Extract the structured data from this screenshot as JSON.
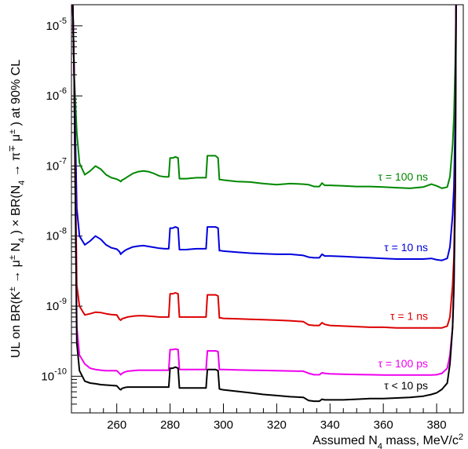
{
  "chart_data": {
    "type": "line",
    "title": "",
    "xlabel": "Assumed N4 mass, MeV/c²",
    "ylabel": "UL on BR(K± → μ±N4) × BR(N4 → π∓μ±) at 90% CL",
    "x_scale": "linear",
    "y_scale": "log",
    "xlim": [
      243,
      390
    ],
    "ylim": [
      3e-11,
      2e-05
    ],
    "x_ticks": [
      260,
      280,
      300,
      320,
      340,
      360,
      380
    ],
    "y_ticks": [
      1e-10,
      1e-09,
      1e-08,
      1e-07,
      1e-06,
      1e-05
    ],
    "grid": false,
    "x_breaks": [
      243.5,
      244,
      245,
      246,
      248,
      250,
      252,
      254,
      256,
      258,
      260,
      261,
      261.5,
      262,
      263,
      264,
      266,
      268,
      270,
      272,
      274,
      276,
      278,
      279.5,
      280,
      281,
      282,
      283,
      283.5,
      284,
      286,
      288,
      290,
      292,
      293.5,
      294,
      296,
      297,
      298,
      298.5,
      299,
      300,
      305,
      310,
      315,
      320,
      325,
      330,
      332,
      334,
      336,
      337,
      338,
      340,
      345,
      350,
      355,
      360,
      365,
      370,
      375,
      378,
      380,
      382,
      384,
      385,
      386,
      386.5,
      387,
      387.3
    ],
    "series": [
      {
        "name": "τ = 100 ns",
        "color": "#008800",
        "values": [
          2e-05,
          2e-06,
          3e-07,
          1.1e-07,
          7.5e-08,
          8.5e-08,
          1e-07,
          9e-08,
          7.5e-08,
          6.8e-08,
          6.5e-08,
          6.2e-08,
          6e-08,
          6.3e-08,
          6.6e-08,
          7e-08,
          7.8e-08,
          8.3e-08,
          8.5e-08,
          8.3e-08,
          7.8e-08,
          7.2e-08,
          7e-08,
          7e-08,
          1.3e-07,
          1.3e-07,
          1.35e-07,
          1.3e-07,
          6.6e-08,
          6.6e-08,
          6.6e-08,
          6.7e-08,
          6.8e-08,
          6.8e-08,
          6.8e-08,
          1.4e-07,
          1.4e-07,
          1.4e-07,
          1.3e-07,
          6.4e-08,
          6.4e-08,
          6.3e-08,
          6e-08,
          5.9e-08,
          5.6e-08,
          5.4e-08,
          5.6e-08,
          5.5e-08,
          5.4e-08,
          5.1e-08,
          5.1e-08,
          5.7e-08,
          5.3e-08,
          5.3e-08,
          5.2e-08,
          5.1e-08,
          5.1e-08,
          5e-08,
          4.9e-08,
          4.8e-08,
          5e-08,
          5.5e-08,
          5.2e-08,
          4.8e-08,
          5e-08,
          7e-08,
          2e-07,
          5e-07,
          3e-06,
          2e-05
        ]
      },
      {
        "name": "τ = 10 ns",
        "color": "#0000dd",
        "values": [
          2e-05,
          2e-06,
          2.5e-08,
          1e-08,
          7.5e-09,
          8.5e-09,
          1e-08,
          9e-09,
          7.5e-09,
          6.8e-09,
          6.5e-09,
          6e-09,
          5.5e-09,
          5.8e-09,
          6.2e-09,
          6.5e-09,
          7e-09,
          7.2e-09,
          7.3e-09,
          7.1e-09,
          6.9e-09,
          6.7e-09,
          6.6e-09,
          6.6e-09,
          1.3e-08,
          1.3e-08,
          1.35e-08,
          1.3e-08,
          6.4e-09,
          6.4e-09,
          6.4e-09,
          6.5e-09,
          6.6e-09,
          6.6e-09,
          6.6e-09,
          1.35e-08,
          1.35e-08,
          1.35e-08,
          1.3e-08,
          6.2e-09,
          6.2e-09,
          6.1e-09,
          5.9e-09,
          5.7e-09,
          5.6e-09,
          5.5e-09,
          5.5e-09,
          5.3e-09,
          5e-09,
          4.9e-09,
          4.9e-09,
          5.5e-09,
          5.2e-09,
          5.2e-09,
          5.1e-09,
          5e-09,
          4.9e-09,
          4.8e-09,
          4.7e-09,
          4.7e-09,
          4.7e-09,
          4.8e-09,
          4.6e-09,
          4.5e-09,
          4.8e-09,
          7e-09,
          2e-08,
          5e-08,
          5e-07,
          2e-05
        ]
      },
      {
        "name": "τ = 1 ns",
        "color": "#dd0000",
        "values": [
          2e-05,
          2e-06,
          2e-09,
          1e-09,
          7.5e-10,
          7.8e-10,
          8.2e-10,
          8.1e-10,
          7.8e-10,
          7.6e-10,
          7.5e-10,
          6.5e-10,
          6.3e-10,
          6.6e-10,
          6.8e-10,
          7e-10,
          7.2e-10,
          7.3e-10,
          7.3e-10,
          7.2e-10,
          7.1e-10,
          7e-10,
          7e-10,
          7e-10,
          1.5e-09,
          1.5e-09,
          1.55e-09,
          1.5e-09,
          7e-10,
          7e-10,
          7e-10,
          7e-10,
          7e-10,
          7e-10,
          7e-10,
          1.45e-09,
          1.45e-09,
          1.45e-09,
          1.4e-09,
          6.8e-10,
          6.8e-10,
          6.7e-10,
          6.6e-10,
          6.5e-10,
          6.4e-10,
          6.3e-10,
          6.2e-10,
          6e-10,
          5.4e-10,
          5.3e-10,
          5.3e-10,
          5.8e-10,
          5.5e-10,
          5.3e-10,
          5.2e-10,
          5.1e-10,
          5e-10,
          5e-10,
          4.9e-10,
          4.9e-10,
          4.9e-10,
          4.9e-10,
          4.9e-10,
          4.9e-10,
          5.2e-10,
          7e-10,
          2e-09,
          5e-09,
          1e-07,
          2e-05
        ]
      },
      {
        "name": "τ = 100 ps",
        "color": "#ee00ee",
        "values": [
          2e-05,
          2e-06,
          5e-10,
          2e-10,
          1.5e-10,
          1.3e-10,
          1.25e-10,
          1.22e-10,
          1.2e-10,
          1.2e-10,
          1.2e-10,
          1.1e-10,
          1.05e-10,
          1.1e-10,
          1.15e-10,
          1.18e-10,
          1.2e-10,
          1.22e-10,
          1.22e-10,
          1.22e-10,
          1.22e-10,
          1.22e-10,
          1.22e-10,
          1.22e-10,
          2.4e-10,
          2.4e-10,
          2.45e-10,
          2.4e-10,
          1.25e-10,
          1.25e-10,
          1.25e-10,
          1.25e-10,
          1.25e-10,
          1.25e-10,
          1.25e-10,
          2.3e-10,
          2.3e-10,
          2.3e-10,
          2.25e-10,
          1.25e-10,
          1.25e-10,
          1.25e-10,
          1.23e-10,
          1.22e-10,
          1.21e-10,
          1.2e-10,
          1.19e-10,
          1.18e-10,
          1.1e-10,
          1.05e-10,
          1.05e-10,
          1.12e-10,
          1.1e-10,
          1.08e-10,
          1.07e-10,
          1.06e-10,
          1.05e-10,
          1.04e-10,
          1.04e-10,
          1.04e-10,
          1.04e-10,
          1.04e-10,
          1.05e-10,
          1.1e-10,
          1.3e-10,
          2e-10,
          5e-10,
          2e-09,
          5e-08,
          2e-05
        ]
      },
      {
        "name": "τ < 10 ps",
        "color": "#000000",
        "values": [
          2e-05,
          2e-06,
          3e-10,
          1.2e-10,
          8.5e-11,
          8e-11,
          7.8e-11,
          7.6e-11,
          7.5e-11,
          7.4e-11,
          7.3e-11,
          6.6e-11,
          6.4e-11,
          6.7e-11,
          6.9e-11,
          7e-11,
          7e-11,
          7e-11,
          7e-11,
          7e-11,
          7e-11,
          7e-11,
          7e-11,
          7e-11,
          1.3e-10,
          1.3e-10,
          1.35e-10,
          1.3e-10,
          6.8e-11,
          6.8e-11,
          6.8e-11,
          6.8e-11,
          6.8e-11,
          6.8e-11,
          6.8e-11,
          1.25e-10,
          1.25e-10,
          1.25e-10,
          1.2e-10,
          6.6e-11,
          6.5e-11,
          6.4e-11,
          6.1e-11,
          5.8e-11,
          5.5e-11,
          5.3e-11,
          5.1e-11,
          5e-11,
          4.5e-11,
          4.4e-11,
          4.4e-11,
          4.7e-11,
          4.6e-11,
          4.6e-11,
          4.6e-11,
          4.7e-11,
          4.8e-11,
          4.8e-11,
          4.9e-11,
          5e-11,
          5.2e-11,
          5.5e-11,
          5.8e-11,
          6.5e-11,
          8e-11,
          1.5e-10,
          5e-10,
          2e-09,
          5e-08,
          2e-05
        ]
      }
    ]
  }
}
